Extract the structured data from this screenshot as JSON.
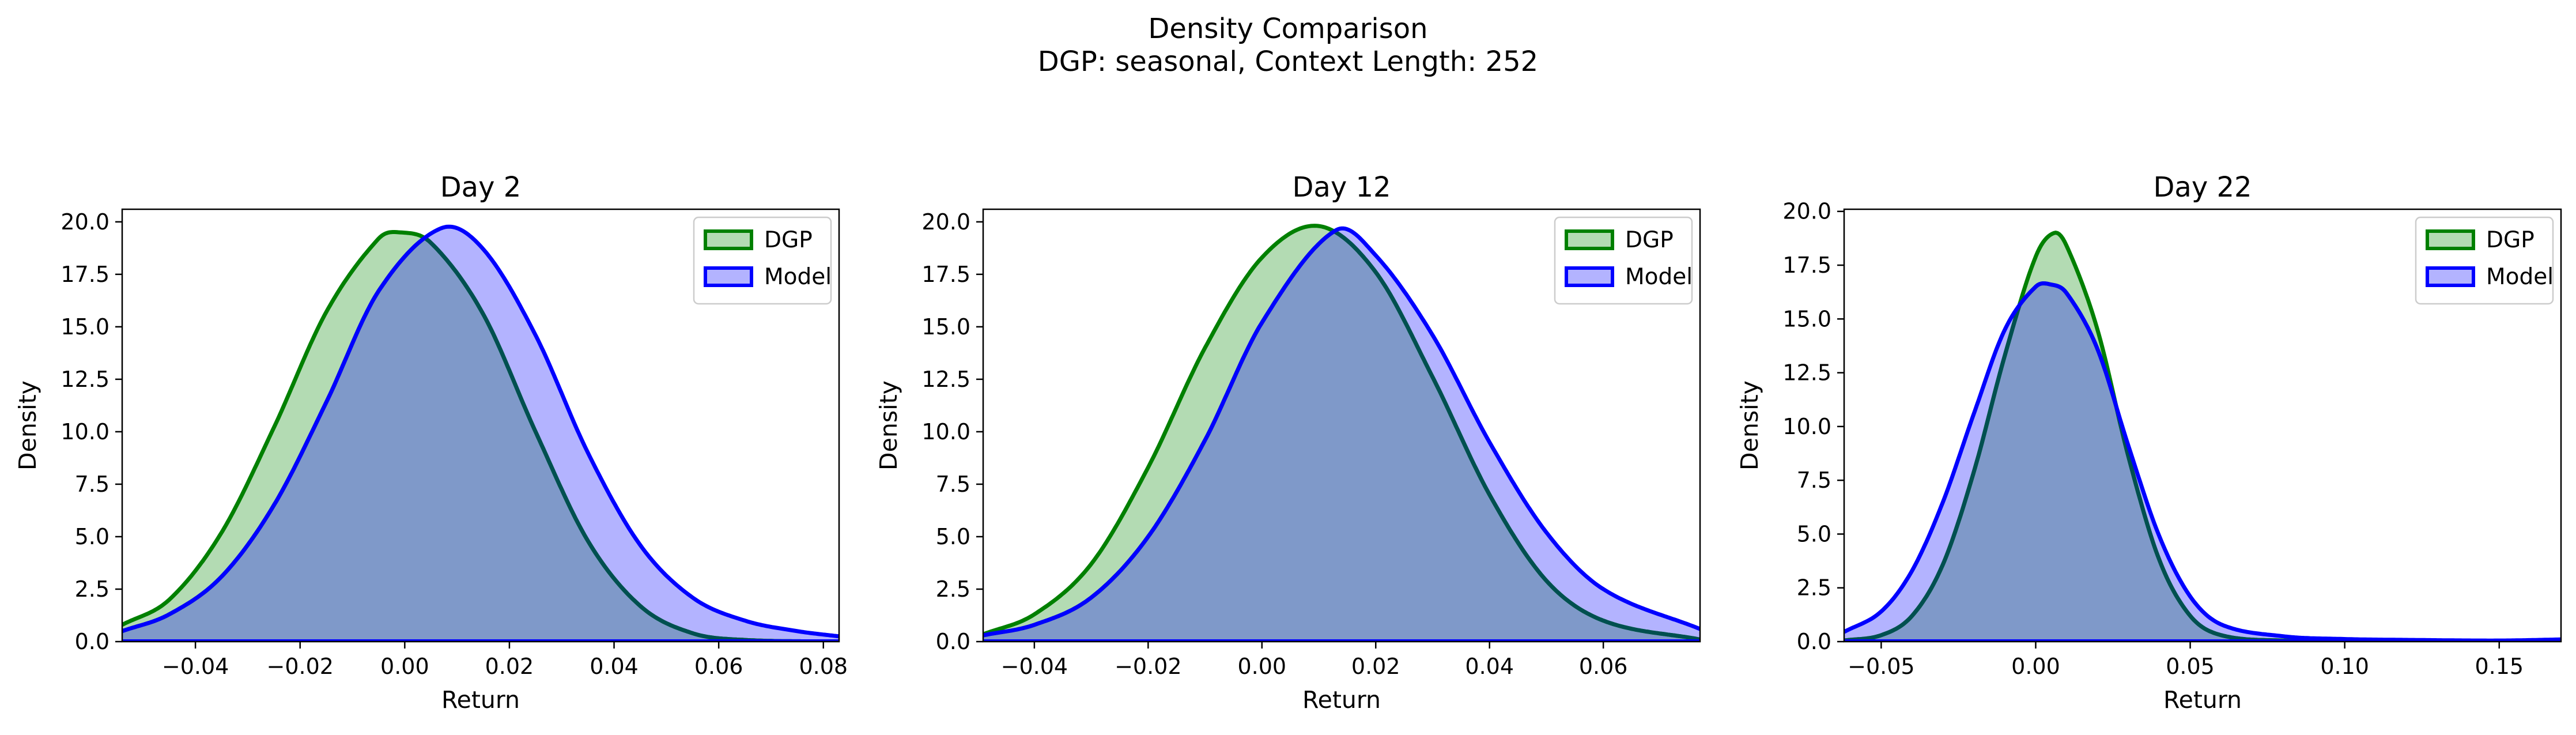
{
  "figure": {
    "title_line1": "Density Comparison",
    "title_line2": "DGP: seasonal, Context Length: 252"
  },
  "colors": {
    "dgp_line": "#008000",
    "dgp_fill": "#b3dbb3",
    "model_line": "#0000ff",
    "model_fill": "#b3b3ff",
    "overlap_fill": "#7f99c9",
    "overlap_line": "#005050"
  },
  "chart_data": [
    {
      "type": "area",
      "title": "Day 2",
      "xlabel": "Return",
      "ylabel": "Density",
      "xlim": [
        -0.054,
        0.083
      ],
      "ylim": [
        0,
        20.6
      ],
      "xticks": [
        -0.04,
        -0.02,
        0.0,
        0.02,
        0.04,
        0.06,
        0.08
      ],
      "xtick_labels": [
        "−0.04",
        "−0.02",
        "0.00",
        "0.02",
        "0.04",
        "0.06",
        "0.08"
      ],
      "yticks": [
        0,
        2.5,
        5,
        7.5,
        10,
        12.5,
        15,
        17.5,
        20
      ],
      "ytick_labels": [
        "0.0",
        "2.5",
        "5.0",
        "7.5",
        "10.0",
        "12.5",
        "15.0",
        "17.5",
        "20.0"
      ],
      "legend": {
        "position": "top-right",
        "entries": [
          "DGP",
          "Model"
        ]
      },
      "series": [
        {
          "name": "DGP",
          "x": [
            -0.054,
            -0.045,
            -0.035,
            -0.025,
            -0.015,
            -0.005,
            -0.001,
            0.005,
            0.015,
            0.025,
            0.035,
            0.045,
            0.055,
            0.065,
            0.083
          ],
          "values": [
            0.8,
            2.0,
            5.2,
            10.2,
            15.7,
            19.2,
            19.5,
            19.0,
            15.6,
            10.0,
            4.8,
            1.7,
            0.4,
            0.08,
            0.0
          ]
        },
        {
          "name": "Model",
          "x": [
            -0.054,
            -0.045,
            -0.035,
            -0.025,
            -0.015,
            -0.005,
            0.007,
            0.015,
            0.025,
            0.035,
            0.045,
            0.055,
            0.065,
            0.075,
            0.083
          ],
          "values": [
            0.5,
            1.3,
            3.1,
            6.5,
            11.4,
            16.7,
            19.7,
            18.7,
            14.6,
            9.0,
            4.6,
            2.1,
            1.0,
            0.5,
            0.25
          ]
        }
      ]
    },
    {
      "type": "area",
      "title": "Day 12",
      "xlabel": "Return",
      "ylabel": "Density",
      "xlim": [
        -0.049,
        0.077
      ],
      "ylim": [
        0,
        20.6
      ],
      "xticks": [
        -0.04,
        -0.02,
        0.0,
        0.02,
        0.04,
        0.06
      ],
      "xtick_labels": [
        "−0.04",
        "−0.02",
        "0.00",
        "0.02",
        "0.04",
        "0.06"
      ],
      "yticks": [
        0,
        2.5,
        5,
        7.5,
        10,
        12.5,
        15,
        17.5,
        20
      ],
      "ytick_labels": [
        "0.0",
        "2.5",
        "5.0",
        "7.5",
        "10.0",
        "12.5",
        "15.0",
        "17.5",
        "20.0"
      ],
      "legend": {
        "position": "top-right",
        "entries": [
          "DGP",
          "Model"
        ]
      },
      "series": [
        {
          "name": "DGP",
          "x": [
            -0.049,
            -0.04,
            -0.03,
            -0.02,
            -0.01,
            0.0,
            0.01,
            0.02,
            0.03,
            0.04,
            0.05,
            0.06,
            0.077
          ],
          "values": [
            0.35,
            1.3,
            3.7,
            8.3,
            14.0,
            18.3,
            19.8,
            17.6,
            12.6,
            7.0,
            2.9,
            1.0,
            0.1
          ]
        },
        {
          "name": "Model",
          "x": [
            -0.049,
            -0.04,
            -0.03,
            -0.02,
            -0.01,
            0.0,
            0.013,
            0.02,
            0.03,
            0.04,
            0.05,
            0.06,
            0.077
          ],
          "values": [
            0.3,
            0.8,
            2.1,
            5.0,
            9.6,
            15.2,
            19.6,
            18.4,
            14.6,
            9.5,
            5.2,
            2.5,
            0.6
          ]
        }
      ]
    },
    {
      "type": "area",
      "title": "Day 22",
      "xlabel": "Return",
      "ylabel": "Density",
      "xlim": [
        -0.062,
        0.17
      ],
      "ylim": [
        0,
        20.1
      ],
      "xticks": [
        -0.05,
        0.0,
        0.05,
        0.1,
        0.15
      ],
      "xtick_labels": [
        "−0.05",
        "0.00",
        "0.05",
        "0.10",
        "0.15"
      ],
      "yticks": [
        0,
        2.5,
        5,
        7.5,
        10,
        12.5,
        15,
        17.5,
        20
      ],
      "ytick_labels": [
        "0.0",
        "2.5",
        "5.0",
        "7.5",
        "10.0",
        "12.5",
        "15.0",
        "17.5",
        "20.0"
      ],
      "legend": {
        "position": "top-right",
        "entries": [
          "DGP",
          "Model"
        ]
      },
      "series": [
        {
          "name": "DGP",
          "x": [
            -0.062,
            -0.05,
            -0.04,
            -0.03,
            -0.02,
            -0.01,
            0.0,
            0.006,
            0.01,
            0.02,
            0.03,
            0.04,
            0.05,
            0.06,
            0.08,
            0.12,
            0.17
          ],
          "values": [
            0.05,
            0.3,
            1.2,
            3.6,
            7.9,
            13.3,
            17.9,
            19.0,
            18.4,
            14.5,
            8.6,
            3.8,
            1.2,
            0.3,
            0.05,
            0.0,
            0.0
          ]
        },
        {
          "name": "Model",
          "x": [
            -0.062,
            -0.05,
            -0.04,
            -0.03,
            -0.02,
            -0.01,
            0.0,
            0.005,
            0.01,
            0.02,
            0.03,
            0.04,
            0.05,
            0.06,
            0.08,
            0.1,
            0.12,
            0.15,
            0.17
          ],
          "values": [
            0.45,
            1.4,
            3.3,
            6.5,
            10.6,
            14.5,
            16.5,
            16.6,
            16.2,
            13.6,
            9.1,
            4.9,
            2.1,
            0.8,
            0.25,
            0.12,
            0.08,
            0.05,
            0.1
          ]
        }
      ]
    }
  ]
}
